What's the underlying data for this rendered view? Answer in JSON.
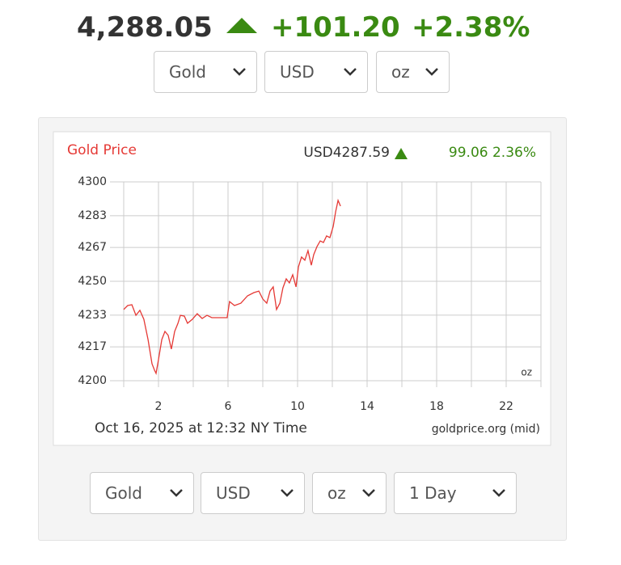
{
  "header": {
    "price": "4,288.05",
    "change": "+101.20",
    "change_pct": "+2.38%"
  },
  "selectors_top": [
    "Gold",
    "USD",
    "oz"
  ],
  "selectors_bottom": [
    "Gold",
    "USD",
    "oz",
    "1 Day"
  ],
  "chart_data": {
    "type": "line",
    "title": "Gold Price",
    "price_label": "USD4287.59",
    "change_label": "99.06 2.36%",
    "subtitle": "Oct 16, 2025 at 12:32 NY Time",
    "source": "goldprice.org (mid)",
    "unit": "oz",
    "color": "#e53935",
    "grid": true,
    "x": [
      0,
      0.23,
      0.47,
      0.7,
      0.93,
      1.16,
      1.4,
      1.63,
      1.77,
      1.86,
      2,
      2.19,
      2.37,
      2.56,
      2.74,
      2.93,
      3.12,
      3.26,
      3.49,
      3.67,
      3.95,
      4.23,
      4.51,
      4.79,
      5.07,
      5.44,
      5.95,
      6.09,
      6.37,
      6.74,
      7.12,
      7.49,
      7.77,
      8,
      8.23,
      8.42,
      8.6,
      8.79,
      8.98,
      9.16,
      9.35,
      9.53,
      9.72,
      9.91,
      10.05,
      10.23,
      10.42,
      10.6,
      10.79,
      10.93,
      11.12,
      11.3,
      11.49,
      11.67,
      11.86,
      12.05,
      12.19,
      12.33,
      12.47
    ],
    "values": [
      4235.8,
      4237.8,
      4238.2,
      4232.9,
      4235.4,
      4230.9,
      4220.7,
      4208.5,
      4205.3,
      4203.7,
      4210.6,
      4220.7,
      4224.8,
      4222.8,
      4215.9,
      4224.8,
      4228.9,
      4232.9,
      4232.5,
      4228.9,
      4230.9,
      4233.7,
      4231.3,
      4232.9,
      4231.7,
      4231.7,
      4231.7,
      4239.8,
      4237.8,
      4239,
      4242.7,
      4244.3,
      4245.1,
      4241.1,
      4239,
      4245.1,
      4247.2,
      4235.8,
      4239,
      4246.7,
      4251.2,
      4249.2,
      4253.3,
      4247.2,
      4257.3,
      4262.2,
      4260.6,
      4265.4,
      4258.1,
      4263.4,
      4267.5,
      4270.3,
      4269.5,
      4272.8,
      4272,
      4277.6,
      4285,
      4290.7,
      4287.8
    ],
    "xlim": [
      0,
      24
    ],
    "xticks": [
      2,
      6,
      10,
      14,
      18,
      22
    ],
    "x_minor_ticks": [
      0,
      4,
      8,
      12,
      16,
      20,
      24
    ],
    "ylim": [
      4200,
      4300
    ],
    "yticks": [
      4200,
      4217,
      4233,
      4250,
      4267,
      4283,
      4300
    ]
  }
}
